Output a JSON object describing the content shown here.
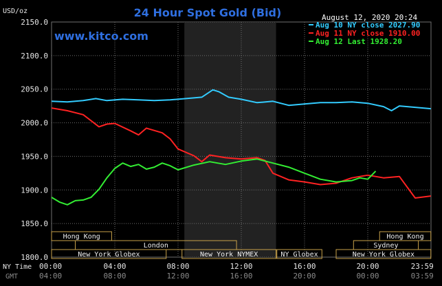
{
  "header": {
    "title": "24 Hour Spot Gold (Bid)",
    "brand": "www.kitco.com",
    "timestamp": "August 12, 2020 20:24",
    "unit": "USD/oz"
  },
  "axes": {
    "x_label_primary": "NY Time",
    "x_label_secondary": "GMT"
  },
  "colors": {
    "background": "#000000",
    "grid": "#6f6f6f",
    "highlight": "#222222",
    "aug10": "#33ccff",
    "aug11": "#ff2222",
    "aug12": "#33ee33",
    "session_box": "#c8a24a",
    "title": "#2f6fe0"
  },
  "sessions": [
    {
      "name": "Hong Kong",
      "start": 0,
      "end": 3.8,
      "row": 0
    },
    {
      "name": "London",
      "start": 1.5,
      "end": 11.7,
      "row": 1
    },
    {
      "name": "New York Globex",
      "start": 0,
      "end": 7.25,
      "row": 2
    },
    {
      "name": "New York NYMEX",
      "start": 8.25,
      "end": 14.2,
      "row": 2
    },
    {
      "name": "NY Globex",
      "start": 14.25,
      "end": 17.1,
      "row": 2
    },
    {
      "name": "Hong Kong",
      "start": 20.75,
      "end": 23.99,
      "row": 0
    },
    {
      "name": "Sydney",
      "start": 19.1,
      "end": 23.2,
      "row": 1
    },
    {
      "name": "New York Globex",
      "start": 18.0,
      "end": 23.99,
      "row": 2
    }
  ],
  "chart_data": {
    "type": "line",
    "title": "24 Hour Spot Gold (Bid)",
    "ylabel": "USD/oz",
    "xlabel": "",
    "ylim": [
      1800,
      2150
    ],
    "xlim": [
      0,
      24
    ],
    "yticks": [
      "2150.0",
      "2100.0",
      "2050.0",
      "2000.0",
      "1950.0",
      "1900.0",
      "1850.0",
      "1800.0"
    ],
    "xticks_ny": [
      "00:00",
      "04:00",
      "08:00",
      "12:00",
      "16:00",
      "20:00",
      "23:59"
    ],
    "xticks_gmt": [
      "04:00",
      "08:00",
      "12:00",
      "16:00",
      "20:00",
      "00:00",
      "03:59"
    ],
    "highlight_range": [
      8.4,
      14.2
    ],
    "grid": true,
    "legend_position": "top-right",
    "series": [
      {
        "name": "Aug 10 NY close 2027.90",
        "color": "#33ccff",
        "x": [
          0,
          1,
          2,
          2.8,
          3.5,
          4.5,
          5.5,
          6.5,
          7.5,
          8.5,
          9.5,
          10.2,
          10.6,
          11.2,
          12,
          13,
          14,
          15,
          16,
          17,
          18,
          19,
          20,
          21,
          21.5,
          22,
          23,
          23.99
        ],
        "y": [
          2032,
          2031,
          2033,
          2036,
          2033,
          2035,
          2034,
          2033,
          2034,
          2036,
          2038,
          2049,
          2046,
          2038,
          2035,
          2030,
          2032,
          2026,
          2028,
          2030,
          2030,
          2031,
          2029,
          2024,
          2018,
          2025,
          2023,
          2021
        ]
      },
      {
        "name": "Aug 11 NY close 1910.00",
        "color": "#ff2222",
        "x": [
          0,
          1,
          2,
          3,
          3.5,
          4,
          5,
          5.5,
          6,
          7,
          7.5,
          8,
          9,
          9.5,
          10,
          11,
          12,
          13,
          13.5,
          14,
          15,
          16,
          17,
          18,
          19,
          20,
          21,
          22,
          23,
          23.99
        ],
        "y": [
          2022,
          2018,
          2012,
          1994,
          1998,
          1999,
          1988,
          1982,
          1992,
          1985,
          1976,
          1961,
          1951,
          1942,
          1952,
          1948,
          1946,
          1948,
          1944,
          1925,
          1915,
          1912,
          1908,
          1910,
          1918,
          1922,
          1918,
          1920,
          1888,
          1891
        ]
      },
      {
        "name": "Aug 12 Last 1928.20",
        "color": "#33ee33",
        "x": [
          0,
          0.5,
          1,
          1.5,
          2,
          2.5,
          3,
          3.5,
          4,
          4.5,
          5,
          5.5,
          6,
          6.5,
          7,
          7.5,
          8,
          9,
          10,
          11,
          12,
          13,
          14,
          15,
          16,
          17,
          18,
          19,
          19.5,
          20,
          20.5
        ],
        "y": [
          1889,
          1882,
          1878,
          1884,
          1885,
          1889,
          1901,
          1918,
          1932,
          1940,
          1935,
          1938,
          1931,
          1934,
          1940,
          1936,
          1930,
          1937,
          1942,
          1938,
          1943,
          1946,
          1940,
          1934,
          1925,
          1916,
          1912,
          1914,
          1918,
          1916,
          1928
        ]
      }
    ]
  }
}
